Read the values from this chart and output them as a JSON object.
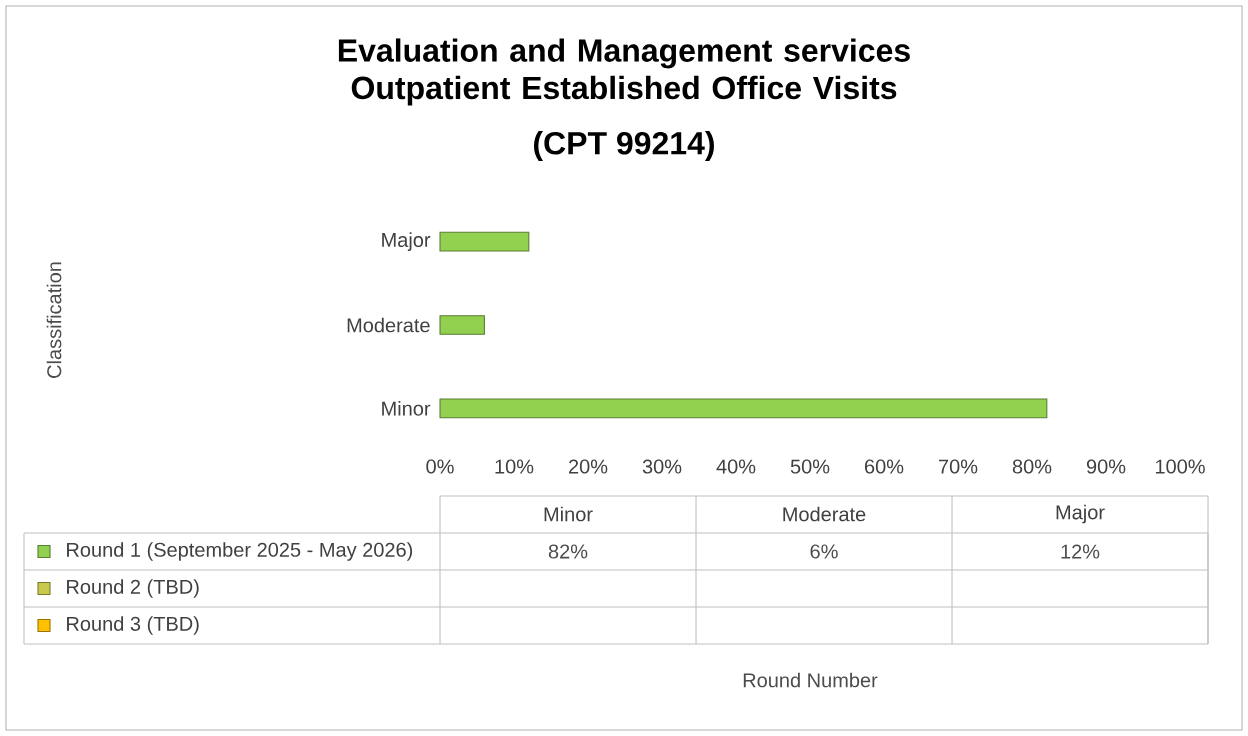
{
  "chart_data": {
    "type": "bar",
    "orientation": "horizontal",
    "title": "Evaluation and Management services Outpatient Established Office Visits",
    "subtitle": "(CPT 99214)",
    "annotations": [
      "Classification",
      "Round Number",
      "82%",
      "6%",
      "12%"
    ],
    "categories": [
      "Major",
      "Moderate",
      "Minor"
    ],
    "series": [
      {
        "name": "Round 1 (September 2025 - May 2026)",
        "color": "#92d050",
        "values": [
          12,
          6,
          82
        ]
      },
      {
        "name": "Round 2 (TBD)",
        "color": "#c9c94b",
        "values": [
          null,
          null,
          null
        ]
      },
      {
        "name": "Round 3 (TBD)",
        "color": "#ffc000",
        "values": [
          null,
          null,
          null
        ]
      }
    ],
    "xlim": [
      0,
      100
    ],
    "xticks": [
      {
        "value": 0,
        "label": "0%"
      },
      {
        "value": 10,
        "label": "10%"
      },
      {
        "value": 20,
        "label": "20%"
      },
      {
        "value": 30,
        "label": "30%"
      },
      {
        "value": 40,
        "label": "40%"
      },
      {
        "value": 50,
        "label": "50%"
      },
      {
        "value": 60,
        "label": "60%"
      },
      {
        "value": 70,
        "label": "70%"
      },
      {
        "value": 80,
        "label": "80%"
      },
      {
        "value": 90,
        "label": "90%"
      },
      {
        "value": 100,
        "label": "100%"
      }
    ],
    "legend": "bottom"
  }
}
